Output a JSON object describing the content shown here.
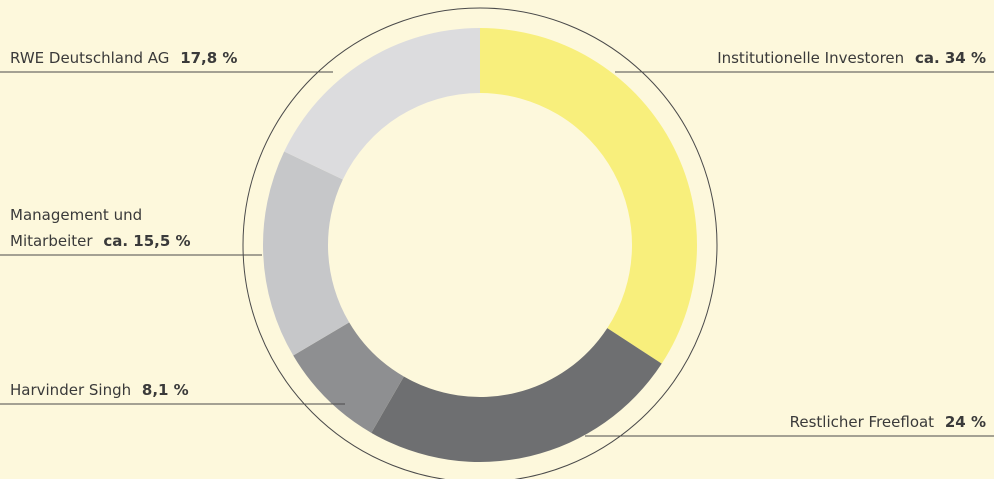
{
  "chart_data": {
    "type": "donut",
    "categories": [
      "Institutionelle Investoren",
      "Restlicher Freefloat",
      "Harvinder Singh",
      "Management und Mitarbeiter",
      "RWE Deutschland AG"
    ],
    "values": [
      34,
      24,
      8.1,
      15.5,
      17.8
    ],
    "value_labels": [
      "ca. 34 %",
      "24 %",
      "8,1 %",
      "ca. 15,5 %",
      "17,8 %"
    ],
    "colors": [
      "#f8ef7c",
      "#6e6f71",
      "#8e8f91",
      "#c6c7c9",
      "#dcdcde"
    ]
  }
}
